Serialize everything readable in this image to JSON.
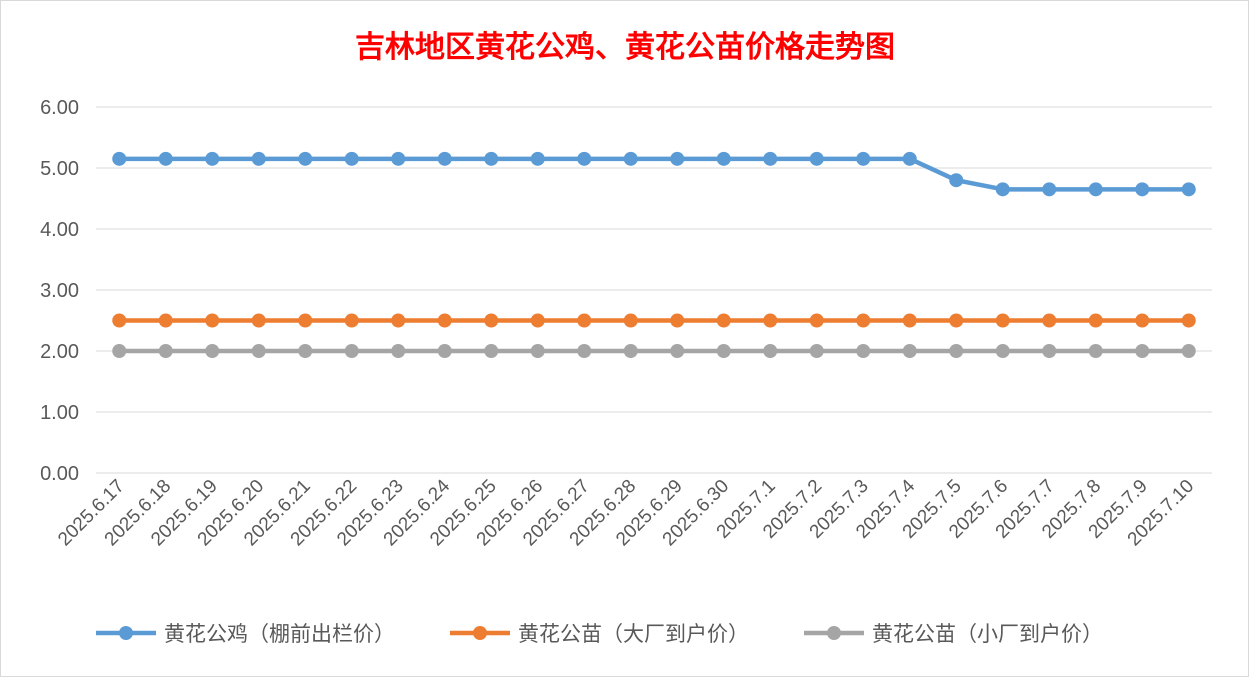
{
  "chart_data": {
    "type": "line",
    "title": "吉林地区黄花公鸡、黄花公苗价格走势图",
    "xlabel": "",
    "ylabel": "",
    "ylim": [
      0,
      6
    ],
    "ytick_labels": [
      "0.00",
      "1.00",
      "2.00",
      "3.00",
      "4.00",
      "5.00",
      "6.00"
    ],
    "grid": true,
    "legend_position": "bottom",
    "categories": [
      "2025.6.17",
      "2025.6.18",
      "2025.6.19",
      "2025.6.20",
      "2025.6.21",
      "2025.6.22",
      "2025.6.23",
      "2025.6.24",
      "2025.6.25",
      "2025.6.26",
      "2025.6.27",
      "2025.6.28",
      "2025.6.29",
      "2025.6.30",
      "2025.7.1",
      "2025.7.2",
      "2025.7.3",
      "2025.7.4",
      "2025.7.5",
      "2025.7.6",
      "2025.7.7",
      "2025.7.8",
      "2025.7.9",
      "2025.7.10"
    ],
    "series": [
      {
        "name": "黄花公鸡（棚前出栏价）",
        "color": "#5b9bd5",
        "values": [
          5.15,
          5.15,
          5.15,
          5.15,
          5.15,
          5.15,
          5.15,
          5.15,
          5.15,
          5.15,
          5.15,
          5.15,
          5.15,
          5.15,
          5.15,
          5.15,
          5.15,
          5.15,
          4.8,
          4.65,
          4.65,
          4.65,
          4.65,
          4.65
        ]
      },
      {
        "name": "黄花公苗（大厂到户价）",
        "color": "#ed7d31",
        "values": [
          2.5,
          2.5,
          2.5,
          2.5,
          2.5,
          2.5,
          2.5,
          2.5,
          2.5,
          2.5,
          2.5,
          2.5,
          2.5,
          2.5,
          2.5,
          2.5,
          2.5,
          2.5,
          2.5,
          2.5,
          2.5,
          2.5,
          2.5,
          2.5
        ]
      },
      {
        "name": "黄花公苗（小厂到户价）",
        "color": "#a5a5a5",
        "values": [
          2.0,
          2.0,
          2.0,
          2.0,
          2.0,
          2.0,
          2.0,
          2.0,
          2.0,
          2.0,
          2.0,
          2.0,
          2.0,
          2.0,
          2.0,
          2.0,
          2.0,
          2.0,
          2.0,
          2.0,
          2.0,
          2.0,
          2.0,
          2.0
        ]
      }
    ]
  }
}
